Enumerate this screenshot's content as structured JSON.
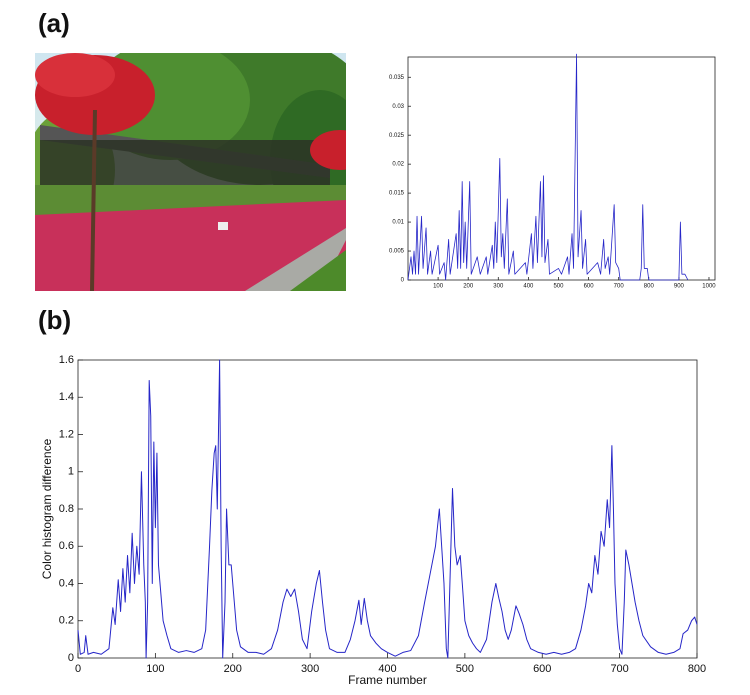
{
  "chart_data": [
    {
      "type": "line",
      "panel": "(a)",
      "color": "#2626c8",
      "x": [
        0,
        10,
        15,
        20,
        25,
        30,
        35,
        45,
        50,
        60,
        65,
        75,
        80,
        100,
        105,
        120,
        125,
        135,
        140,
        160,
        165,
        170,
        175,
        180,
        185,
        190,
        195,
        205,
        210,
        230,
        240,
        260,
        265,
        280,
        285,
        290,
        295,
        305,
        310,
        315,
        320,
        330,
        335,
        350,
        355,
        390,
        395,
        410,
        415,
        425,
        430,
        440,
        445,
        450,
        455,
        465,
        470,
        500,
        510,
        530,
        535,
        545,
        550,
        560,
        565,
        575,
        580,
        590,
        595,
        630,
        640,
        650,
        655,
        665,
        670,
        685,
        690,
        700,
        705,
        770,
        775,
        780,
        785,
        795,
        800,
        900,
        905,
        910,
        920,
        930
      ],
      "values": [
        0,
        0.004,
        0.001,
        0.005,
        0.001,
        0.011,
        0.001,
        0.011,
        0.002,
        0.009,
        0.001,
        0.005,
        0.001,
        0.006,
        0.001,
        0.003,
        0,
        0.007,
        0.001,
        0.008,
        0.002,
        0.012,
        0.002,
        0.017,
        0.003,
        0.01,
        0.002,
        0.017,
        0.001,
        0.004,
        0.001,
        0.004,
        0.001,
        0.006,
        0.002,
        0.01,
        0.003,
        0.021,
        0.004,
        0.008,
        0.002,
        0.014,
        0.001,
        0.005,
        0.001,
        0.003,
        0.001,
        0.008,
        0.002,
        0.011,
        0.003,
        0.017,
        0.004,
        0.018,
        0.003,
        0.007,
        0.001,
        0.002,
        0.001,
        0.004,
        0.001,
        0.008,
        0.002,
        0.039,
        0.004,
        0.012,
        0.002,
        0.007,
        0.001,
        0.003,
        0.001,
        0.007,
        0.002,
        0.004,
        0.001,
        0.013,
        0.003,
        0.002,
        0,
        0,
        0.002,
        0.013,
        0.002,
        0.002,
        0,
        0,
        0.01,
        0.001,
        0.001,
        0
      ],
      "xlim": [
        0,
        1020
      ],
      "ylim": [
        0,
        0.0385
      ],
      "xticks": [
        100,
        200,
        300,
        400,
        500,
        600,
        700,
        800,
        900,
        1000
      ],
      "yticks": [
        0,
        0.005,
        0.01,
        0.015,
        0.02,
        0.025,
        0.03,
        0.035
      ]
    },
    {
      "type": "line",
      "panel": "(b)",
      "x_label": "Frame number",
      "y_label": "Color histogram difference",
      "color": "#2626c8",
      "x": [
        0,
        3,
        8,
        10,
        13,
        20,
        30,
        40,
        45,
        48,
        52,
        55,
        58,
        61,
        64,
        67,
        70,
        73,
        76,
        79,
        82,
        85,
        87,
        88,
        90,
        92,
        94,
        96,
        98,
        100,
        102,
        104,
        107,
        110,
        115,
        120,
        130,
        140,
        150,
        160,
        165,
        170,
        173,
        176,
        178,
        180,
        183,
        185,
        187,
        190,
        192,
        195,
        198,
        202,
        205,
        210,
        220,
        230,
        240,
        250,
        258,
        265,
        270,
        275,
        280,
        285,
        290,
        296,
        302,
        308,
        312,
        316,
        320,
        325,
        335,
        345,
        352,
        358,
        363,
        366,
        370,
        374,
        378,
        385,
        392,
        400,
        410,
        420,
        430,
        440,
        448,
        455,
        462,
        467,
        470,
        473,
        476,
        478,
        480,
        484,
        487,
        490,
        494,
        497,
        500,
        505,
        510,
        515,
        520,
        528,
        535,
        540,
        544,
        548,
        552,
        556,
        560,
        566,
        570,
        575,
        580,
        585,
        595,
        605,
        615,
        625,
        635,
        643,
        650,
        656,
        660,
        664,
        668,
        672,
        676,
        680,
        684,
        687,
        690,
        692,
        694,
        697,
        700,
        703,
        706,
        708,
        712,
        716,
        720,
        725,
        730,
        740,
        750,
        760,
        770,
        778,
        782,
        788,
        793,
        797,
        800
      ],
      "values": [
        0.15,
        0.02,
        0.03,
        0.12,
        0.02,
        0.03,
        0.02,
        0.05,
        0.27,
        0.18,
        0.42,
        0.25,
        0.48,
        0.3,
        0.55,
        0.35,
        0.67,
        0.4,
        0.6,
        0.45,
        1.0,
        0.5,
        0.3,
        0,
        0.3,
        1.49,
        1.3,
        0.4,
        1.16,
        0.7,
        1.1,
        0.5,
        0.35,
        0.2,
        0.12,
        0.05,
        0.03,
        0.04,
        0.03,
        0.05,
        0.15,
        0.6,
        0.9,
        1.1,
        1.14,
        0.8,
        1.6,
        0.6,
        0,
        0.3,
        0.8,
        0.5,
        0.5,
        0.3,
        0.15,
        0.06,
        0.03,
        0.03,
        0.02,
        0.05,
        0.15,
        0.3,
        0.37,
        0.33,
        0.37,
        0.25,
        0.1,
        0.05,
        0.25,
        0.4,
        0.47,
        0.3,
        0.15,
        0.05,
        0.03,
        0.03,
        0.1,
        0.2,
        0.31,
        0.18,
        0.32,
        0.2,
        0.12,
        0.08,
        0.05,
        0.03,
        0.01,
        0.03,
        0.04,
        0.12,
        0.3,
        0.45,
        0.6,
        0.8,
        0.6,
        0.4,
        0.05,
        0,
        0.3,
        0.91,
        0.6,
        0.5,
        0.55,
        0.38,
        0.2,
        0.12,
        0.08,
        0.05,
        0.03,
        0.1,
        0.3,
        0.4,
        0.32,
        0.25,
        0.15,
        0.1,
        0.15,
        0.28,
        0.24,
        0.18,
        0.1,
        0.05,
        0.03,
        0.02,
        0.03,
        0.02,
        0.03,
        0.05,
        0.15,
        0.28,
        0.4,
        0.35,
        0.55,
        0.45,
        0.68,
        0.6,
        0.85,
        0.7,
        1.14,
        0.8,
        0.4,
        0.18,
        0.05,
        0.02,
        0.3,
        0.58,
        0.5,
        0.4,
        0.3,
        0.2,
        0.12,
        0.06,
        0.03,
        0.02,
        0.03,
        0.05,
        0.13,
        0.15,
        0.2,
        0.22,
        0.18
      ],
      "xlim": [
        0,
        800
      ],
      "ylim": [
        0,
        1.6
      ],
      "xticks": [
        0,
        100,
        200,
        300,
        400,
        500,
        600,
        700,
        800
      ],
      "yticks": [
        0,
        0.2,
        0.4,
        0.6,
        0.8,
        1,
        1.2,
        1.4,
        1.6
      ]
    }
  ]
}
